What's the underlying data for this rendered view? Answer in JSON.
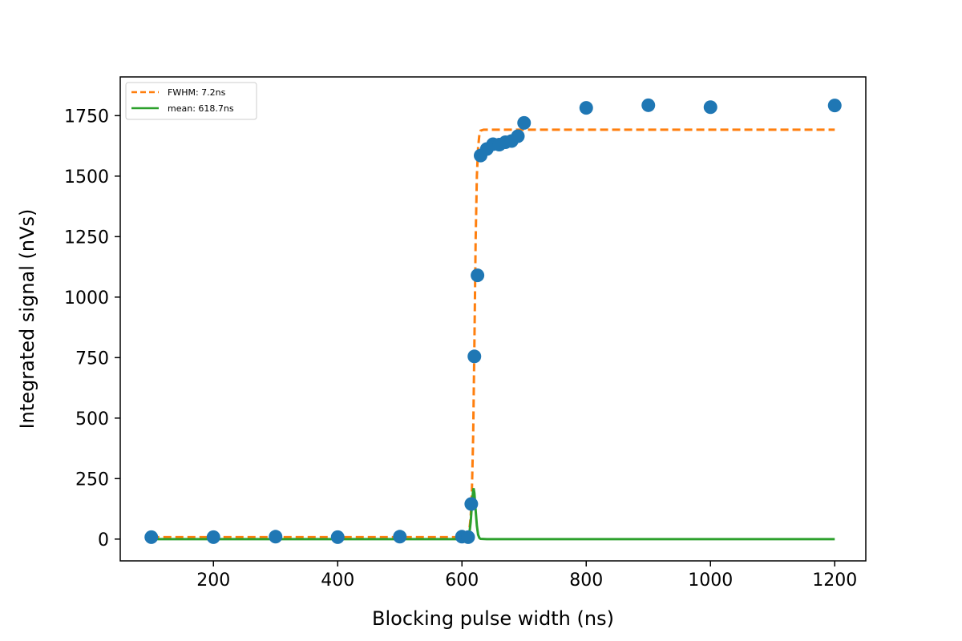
{
  "chart_data": {
    "type": "scatter",
    "title": "",
    "xlabel": "Blocking pulse width (ns)",
    "ylabel": "Integrated signal (nVs)",
    "xlim": [
      50,
      1250
    ],
    "ylim": [
      -90,
      1910
    ],
    "x_ticks": [
      200,
      400,
      600,
      800,
      1000,
      1200
    ],
    "y_ticks": [
      0,
      250,
      500,
      750,
      1000,
      1250,
      1500,
      1750
    ],
    "grid": false,
    "legend_position": "top-left",
    "series": [
      {
        "type": "scatter",
        "color": "#1f77b4",
        "x": [
          100,
          200,
          300,
          400,
          500,
          600,
          610,
          615,
          620,
          625,
          630,
          640,
          650,
          660,
          670,
          680,
          690,
          700,
          800,
          900,
          1000,
          1200
        ],
        "y": [
          8,
          8,
          10,
          8,
          10,
          10,
          8,
          145,
          755,
          1090,
          1585,
          1612,
          1632,
          1630,
          1640,
          1645,
          1665,
          1720,
          1782,
          1793,
          1785,
          1792
        ]
      },
      {
        "name": "FWHM: 7.2ns",
        "type": "line",
        "style": "dashed",
        "color": "#ff7f0e",
        "x": [
          100,
          600,
          605,
          610,
          612,
          614,
          616,
          618,
          620,
          622,
          624,
          626,
          628,
          630,
          635,
          640,
          700,
          800,
          1200
        ],
        "y": [
          8,
          8,
          10,
          20,
          40,
          90,
          200,
          420,
          800,
          1230,
          1500,
          1620,
          1670,
          1688,
          1692,
          1692,
          1692,
          1692,
          1692
        ]
      },
      {
        "name": "mean: 618.7ns",
        "type": "line",
        "style": "solid",
        "color": "#2ca02c",
        "x": [
          100,
          600,
          605,
          610,
          612,
          614,
          616,
          618,
          618.7,
          620,
          622,
          624,
          626,
          628,
          630,
          640,
          1200
        ],
        "y": [
          0,
          0,
          1,
          7,
          25,
          70,
          140,
          200,
          210,
          190,
          120,
          55,
          18,
          5,
          1,
          0,
          0
        ]
      }
    ]
  }
}
